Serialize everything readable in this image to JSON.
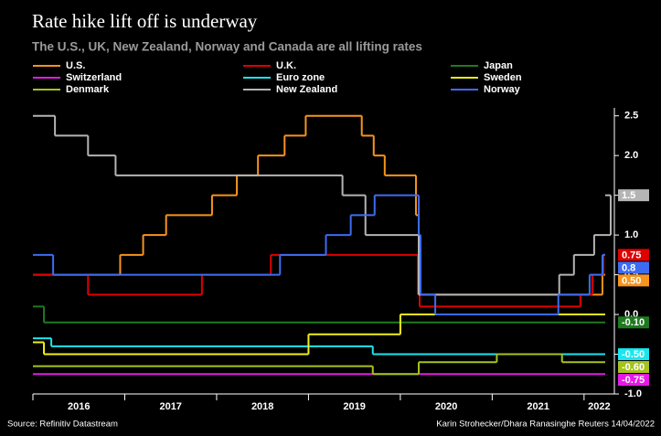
{
  "chart_data": {
    "type": "step",
    "title": "Rate hike lift off is underway",
    "subtitle": "The U.S., UK, New Zealand, Norway and Canada are all lifting rates",
    "source": "Source: Refinitiv Datastream",
    "credit": "Karin Strohecker/Dhara Ranasinghe Reuters 14/04/2022",
    "xlim": [
      2016,
      2022.33
    ],
    "xticks": [
      2016,
      2017,
      2018,
      2019,
      2020,
      2021,
      2022
    ],
    "ylim": [
      -1.0,
      2.6
    ],
    "yticks": [
      {
        "value": -1.0,
        "label": "-1.0"
      },
      {
        "value": -0.5,
        "label": "-0.5"
      },
      {
        "value": 0.0,
        "label": "0.0"
      },
      0.5,
      {
        "value": 1.0,
        "label": "1.0"
      },
      1.5,
      {
        "value": 2.0,
        "label": "2.0"
      },
      2.5
    ],
    "grid": false,
    "series": [
      {
        "name": "U.S.",
        "color": "#f7941d",
        "x": [
          2016.0,
          2016.95,
          2017.2,
          2017.45,
          2017.95,
          2018.22,
          2018.45,
          2018.74,
          2018.97,
          2019.58,
          2019.71,
          2019.83,
          2020.17,
          2020.2,
          2022.2
        ],
        "values": [
          0.5,
          0.75,
          1.0,
          1.25,
          1.5,
          1.75,
          2.0,
          2.25,
          2.5,
          2.25,
          2.0,
          1.75,
          1.25,
          0.25,
          0.5
        ],
        "end_label": "0.50"
      },
      {
        "name": "U.K.",
        "color": "#e00000",
        "x": [
          2016.0,
          2016.6,
          2017.84,
          2018.59,
          2020.19,
          2020.21,
          2021.96,
          2022.09,
          2022.21
        ],
        "values": [
          0.5,
          0.25,
          0.5,
          0.75,
          0.25,
          0.1,
          0.25,
          0.5,
          0.75
        ],
        "end_label": "0.75"
      },
      {
        "name": "Japan",
        "color": "#1f7a1f",
        "x": [
          2016.0,
          2016.12
        ],
        "values": [
          0.1,
          -0.1
        ],
        "end_label": "-0.10"
      },
      {
        "name": "Switzerland",
        "color": "#e619e6",
        "x": [
          2016.0
        ],
        "values": [
          -0.75
        ],
        "end_label": "-0.75"
      },
      {
        "name": "Euro zone",
        "color": "#19e6f0",
        "x": [
          2016.0,
          2016.2,
          2019.7
        ],
        "values": [
          -0.3,
          -0.4,
          -0.5
        ],
        "end_label": "-0.50"
      },
      {
        "name": "Sweden",
        "color": "#f0f019",
        "x": [
          2016.0,
          2016.12,
          2019.0,
          2020.0
        ],
        "values": [
          -0.35,
          -0.5,
          -0.25,
          0.0
        ]
      },
      {
        "name": "Denmark",
        "color": "#a6c21e",
        "x": [
          2016.0,
          2019.7,
          2020.2,
          2021.05,
          2021.76
        ],
        "values": [
          -0.65,
          -0.75,
          -0.6,
          -0.5,
          -0.6
        ],
        "end_label": "-0.60"
      },
      {
        "name": "New Zealand",
        "color": "#b4b4b4",
        "x": [
          2016.0,
          2016.24,
          2016.6,
          2016.9,
          2019.37,
          2019.62,
          2020.2,
          2021.73,
          2021.89,
          2022.11,
          2022.29
        ],
        "values": [
          2.5,
          2.25,
          2.0,
          1.75,
          1.5,
          1.0,
          0.25,
          0.5,
          0.75,
          1.0,
          1.5
        ],
        "end_label": "1.5"
      },
      {
        "name": "Norway",
        "color": "#3d6cf2",
        "x": [
          2016.0,
          2016.22,
          2018.69,
          2019.19,
          2019.46,
          2019.72,
          2020.2,
          2020.22,
          2020.38,
          2021.72,
          2022.06,
          2022.2
        ],
        "values": [
          0.75,
          0.5,
          0.75,
          1.0,
          1.25,
          1.5,
          1.0,
          0.25,
          0.0,
          0.25,
          0.5,
          0.75
        ],
        "end_label": "0.8"
      }
    ]
  }
}
